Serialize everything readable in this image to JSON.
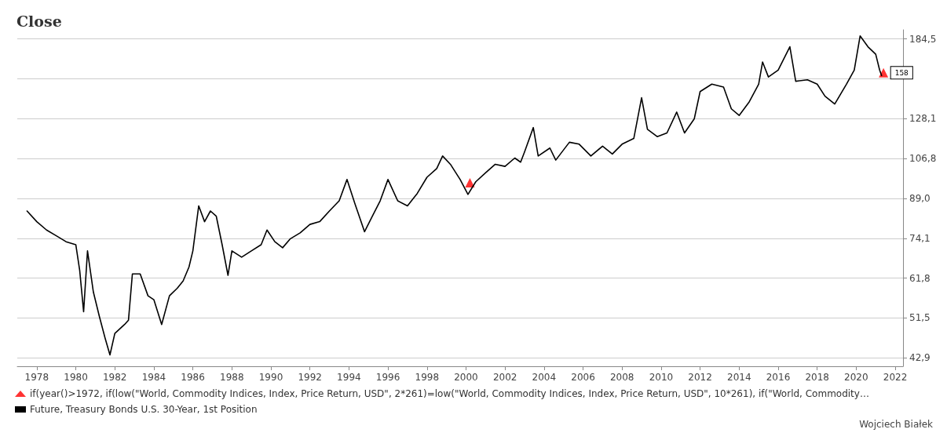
{
  "chart_data": {
    "type": "line",
    "title": "Close",
    "log": "y",
    "grid": "y",
    "legend": "bottom left",
    "xlim": [
      1977,
      2022.4
    ],
    "xticks": [
      1978,
      1980,
      1982,
      1984,
      1986,
      1988,
      1990,
      1992,
      1994,
      1996,
      1998,
      2000,
      2002,
      2004,
      2006,
      2008,
      2010,
      2012,
      2014,
      2016,
      2018,
      2020,
      2022
    ],
    "ylim": [
      41.3,
      192.3
    ],
    "yticks": [
      {
        "value": 42.9,
        "label": "42,9"
      },
      {
        "value": 51.5,
        "label": "51,5"
      },
      {
        "value": 61.8,
        "label": "61,8"
      },
      {
        "value": 74.1,
        "label": "74,1"
      },
      {
        "value": 89.0,
        "label": "89,0"
      },
      {
        "value": 106.8,
        "label": "106,8"
      },
      {
        "value": 128.1,
        "label": "128,1"
      },
      {
        "value": 153.7,
        "label": null
      },
      {
        "value": 184.5,
        "label": "184,5"
      }
    ],
    "annotations": [
      {
        "text": "158",
        "x": 2021.3,
        "y": 158
      },
      "Wojciech Białek"
    ],
    "series": [
      {
        "name": "if(year()>1972, if(low(\"World, Commodity Indices, Index, Price Return, USD\", 2*261)=low(\"World, Commodity Indices, Index, Price Return, USD\", 10*261), if(\"World, Commodity…",
        "type": "scatter",
        "marker": "triangle",
        "color": "#ff0000",
        "x": [
          2000.2,
          2021.4
        ],
        "values": [
          95.6,
          158
        ]
      },
      {
        "name": "Future, Treasury Bonds U.S. 30-Year, 1st Position",
        "marker": "none",
        "color": "#000000",
        "x": [
          1977.5,
          1978.0,
          1978.5,
          1979.0,
          1979.5,
          1980.0,
          1980.2,
          1980.4,
          1980.6,
          1980.9,
          1981.2,
          1981.5,
          1981.75,
          1982.0,
          1982.5,
          1982.7,
          1982.9,
          1983.3,
          1983.7,
          1984.0,
          1984.4,
          1984.8,
          1985.2,
          1985.5,
          1985.8,
          1986.0,
          1986.3,
          1986.6,
          1986.9,
          1987.2,
          1987.5,
          1987.8,
          1988.0,
          1988.5,
          1989.0,
          1989.5,
          1989.8,
          1990.2,
          1990.6,
          1991.0,
          1991.5,
          1992.0,
          1992.5,
          1993.0,
          1993.5,
          1993.9,
          1994.3,
          1994.8,
          1995.2,
          1995.6,
          1996.0,
          1996.5,
          1997.0,
          1997.5,
          1998.0,
          1998.5,
          1998.8,
          1999.2,
          1999.7,
          2000.1,
          2000.5,
          2001.0,
          2001.5,
          2002.0,
          2002.5,
          2002.8,
          2003.0,
          2003.45,
          2003.7,
          2004.3,
          2004.6,
          2005.3,
          2005.8,
          2006.4,
          2007.0,
          2007.5,
          2008.0,
          2008.6,
          2009.0,
          2009.3,
          2009.8,
          2010.3,
          2010.8,
          2011.2,
          2011.7,
          2012.0,
          2012.6,
          2013.2,
          2013.6,
          2014.0,
          2014.5,
          2015.0,
          2015.2,
          2015.5,
          2016.0,
          2016.6,
          2016.9,
          2017.5,
          2018.0,
          2018.4,
          2018.9,
          2019.5,
          2019.9,
          2020.2,
          2020.6,
          2021.0,
          2021.2,
          2021.3
        ],
        "values": [
          84,
          80,
          77,
          75,
          73,
          72,
          64,
          53,
          70,
          58,
          52,
          47,
          43.5,
          48,
          50,
          51,
          63,
          63,
          57,
          56,
          50,
          57,
          59,
          61,
          65,
          70,
          86,
          80,
          84,
          82,
          72,
          62.6,
          70,
          68,
          70,
          72,
          77,
          73,
          71,
          74,
          76,
          79,
          80,
          84,
          88,
          97,
          87,
          76.4,
          82,
          88,
          97,
          88,
          86,
          91,
          98,
          102,
          108,
          104,
          97,
          90.6,
          96,
          100,
          104,
          103,
          107,
          105,
          110,
          123,
          108,
          112,
          106,
          115,
          114,
          108,
          113,
          109,
          114,
          117,
          141,
          122,
          118,
          120,
          132,
          120,
          128,
          145,
          150,
          148,
          134,
          130,
          138,
          150,
          166,
          155,
          160,
          178,
          152,
          153,
          150,
          142,
          137,
          150,
          160,
          187,
          178,
          172,
          160,
          156
        ]
      }
    ]
  }
}
